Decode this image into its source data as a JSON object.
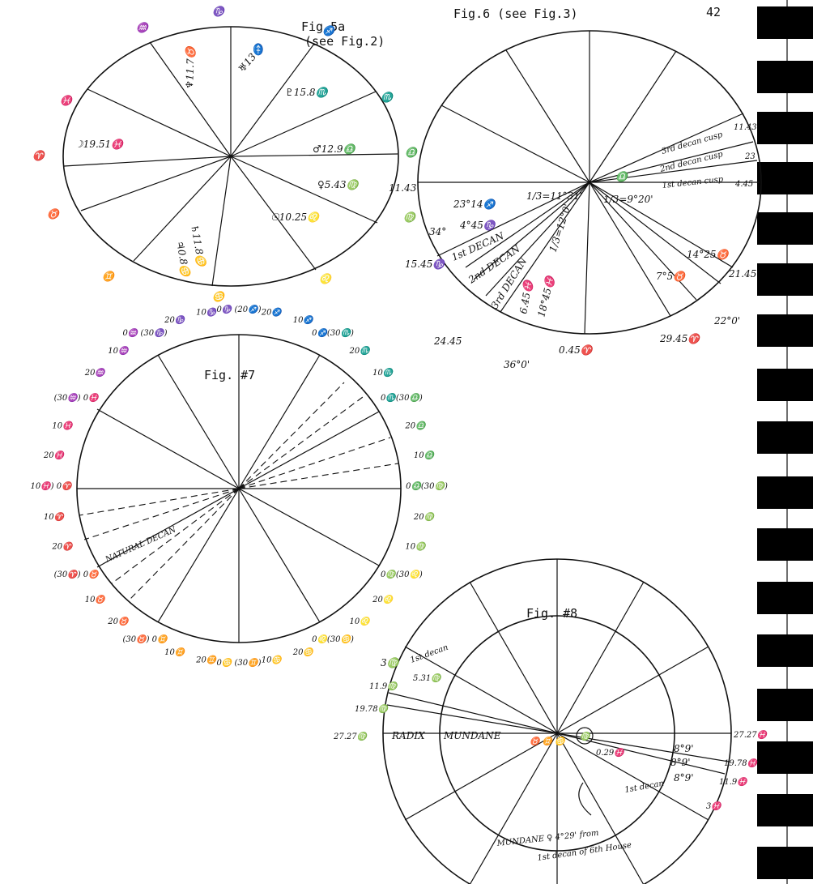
{
  "page_number": "42",
  "fig5a": {
    "title": "Fig.5a",
    "ref": "(see Fig.2)",
    "labels": [
      "♑",
      "♒",
      "♓",
      "♈",
      "♉",
      "♊",
      "♋",
      "♌",
      "♍",
      "♎",
      "♏",
      "♐"
    ],
    "notes": [
      "☽19.51♓",
      "♆11.7♉",
      "♅13♐",
      "♇15.8♏",
      "♂12.9♎",
      "♀5.43♍",
      "☉10.25♌",
      "♄11.8♋",
      "♃0.8♋",
      "(see Fig.2)"
    ]
  },
  "fig6": {
    "title": "Fig.6 (see Fig.3)",
    "notes": [
      "1/3=11°31'",
      "1/3=12°0'",
      "1/3=9°20'",
      "23°14♐",
      "4°45♑",
      "1st DECAN",
      "2nd DECAN",
      "3rd DECAN",
      "6.45♓",
      "18°45♓",
      "14°25♉",
      "7°5♉",
      "34°",
      "15.45♑",
      "24.45",
      "0.45♈",
      "36°0'",
      "29.45♈",
      "22°0'",
      "21.45",
      "11.43",
      "4.45",
      "23",
      "3rd decan cusp",
      "2nd decan cusp",
      "1st decan cusp",
      "11.43",
      "♎"
    ]
  },
  "fig7": {
    "title": "Fig. #7",
    "marker": "NATURAL DECAN",
    "ring": [
      "0♑ (20♐)",
      "20♐",
      "10♐",
      "0♐(30♏)",
      "20♏",
      "10♏",
      "0♏(30♎)",
      "20♎",
      "10♎",
      "0♎(30♍)",
      "20♍",
      "10♍",
      "0♍(30♌)",
      "20♌",
      "10♌",
      "0♌(30♋)",
      "20♋",
      "10♋",
      "0♋ (30♊)",
      "20♊",
      "10♊",
      "(30♉) 0♊",
      "20♉",
      "10♉",
      "(30♈) 0♉",
      "20♈",
      "10♈",
      "10♓) 0♈",
      "20♓",
      "10♓",
      "(30♒) 0♓",
      "20♒",
      "10♒",
      "0♒ (30♑)",
      "20♑",
      "10♑"
    ]
  },
  "fig8": {
    "title": "Fig. #8",
    "notes": [
      "3♍",
      "1st decan",
      "11.9♍",
      "5.31♍",
      "19.78♍",
      "27.27♍",
      "RADIX",
      "MUNDANE",
      "27.27♓",
      "8°9'",
      "19.78♓",
      "8°9'",
      "11.9♓",
      "8°9'",
      "3♓",
      "1st decan",
      "0.29♓",
      "MUNDANE ♀ 4°29' from",
      "1st decan of 6th House",
      "♉ ♊ ♋",
      "♍"
    ]
  }
}
